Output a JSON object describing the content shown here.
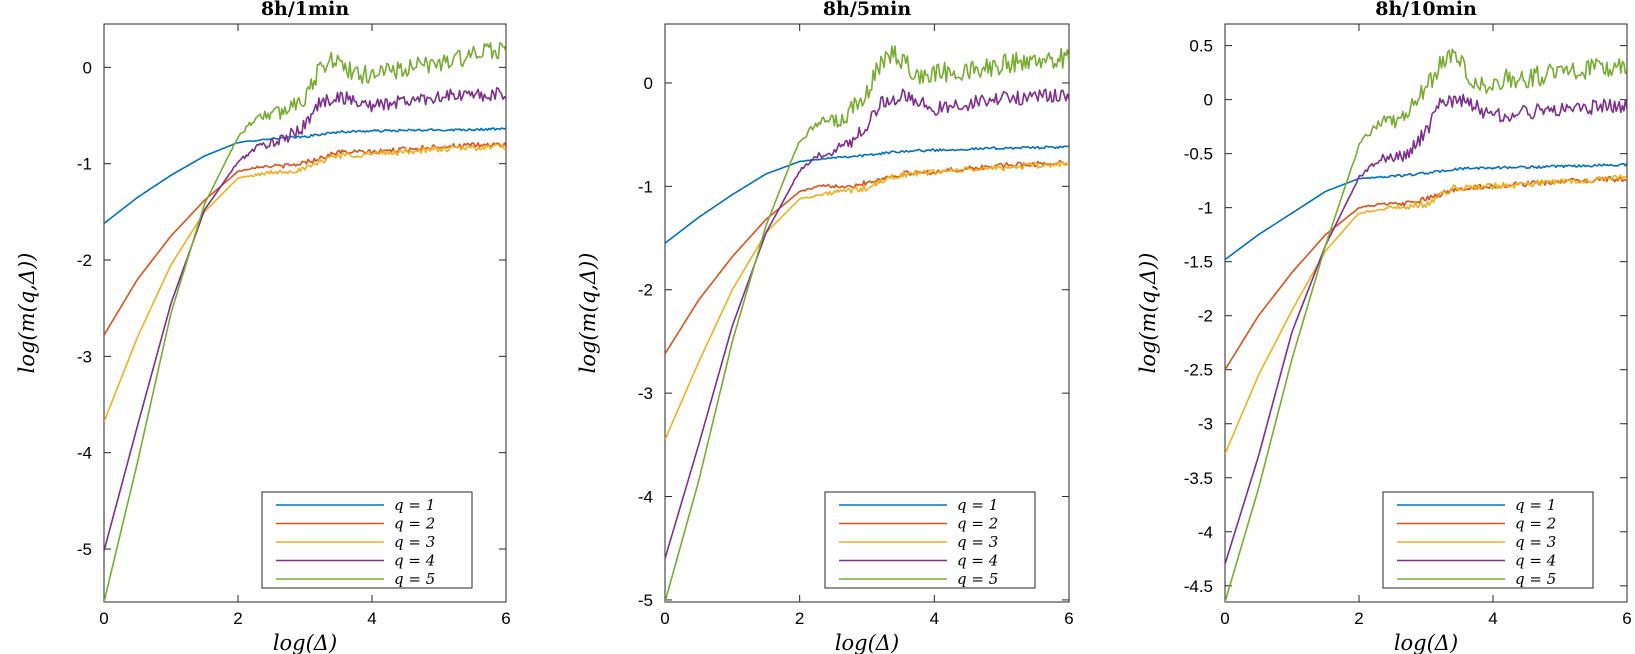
{
  "chart_data": [
    {
      "type": "line",
      "title": "8h/1min",
      "xlabel": "log(Δ)",
      "ylabel": "log(m(q,Δ))",
      "xlim": [
        0,
        6
      ],
      "ylim": [
        -5.55,
        0.45
      ],
      "xticks": [
        0,
        2,
        4,
        6
      ],
      "xtick_labels": [
        "0",
        "2",
        "4",
        "6"
      ],
      "yticks": [
        -5,
        -4,
        -3,
        -2,
        -1,
        0
      ],
      "ytick_labels": [
        "-5",
        "-4",
        "-3",
        "-2",
        "-1",
        "0"
      ],
      "legend_position": "bottom-right",
      "series": [
        {
          "name": "q = 1",
          "color": "#0072BD",
          "noise": 0.012,
          "points": [
            [
              0,
              -1.62
            ],
            [
              0.5,
              -1.35
            ],
            [
              1,
              -1.12
            ],
            [
              1.5,
              -0.92
            ],
            [
              2,
              -0.78
            ],
            [
              2.5,
              -0.74
            ],
            [
              3,
              -0.72
            ],
            [
              3.5,
              -0.67
            ],
            [
              4,
              -0.66
            ],
            [
              5,
              -0.65
            ],
            [
              6,
              -0.64
            ]
          ]
        },
        {
          "name": "q = 2",
          "color": "#D95319",
          "noise": 0.025,
          "points": [
            [
              0,
              -2.78
            ],
            [
              0.5,
              -2.2
            ],
            [
              1,
              -1.75
            ],
            [
              1.5,
              -1.38
            ],
            [
              2,
              -1.08
            ],
            [
              2.3,
              -1.03
            ],
            [
              2.8,
              -1.02
            ],
            [
              3.2,
              -0.95
            ],
            [
              3.5,
              -0.88
            ],
            [
              4,
              -0.88
            ],
            [
              5,
              -0.82
            ],
            [
              6,
              -0.8
            ]
          ]
        },
        {
          "name": "q = 3",
          "color": "#EDB120",
          "noise": 0.03,
          "points": [
            [
              0,
              -3.68
            ],
            [
              0.5,
              -2.8
            ],
            [
              1,
              -2.05
            ],
            [
              1.5,
              -1.5
            ],
            [
              2,
              -1.15
            ],
            [
              2.5,
              -1.09
            ],
            [
              3,
              -1.06
            ],
            [
              3.4,
              -0.92
            ],
            [
              4,
              -0.9
            ],
            [
              5,
              -0.85
            ],
            [
              6,
              -0.82
            ]
          ]
        },
        {
          "name": "q = 4",
          "color": "#7E2F8E",
          "noise": 0.07,
          "points": [
            [
              0,
              -5.02
            ],
            [
              0.5,
              -3.72
            ],
            [
              1,
              -2.45
            ],
            [
              1.5,
              -1.48
            ],
            [
              2,
              -0.98
            ],
            [
              2.3,
              -0.82
            ],
            [
              2.7,
              -0.75
            ],
            [
              3,
              -0.6
            ],
            [
              3.2,
              -0.38
            ],
            [
              3.5,
              -0.3
            ],
            [
              4,
              -0.4
            ],
            [
              4.5,
              -0.35
            ],
            [
              5,
              -0.3
            ],
            [
              6,
              -0.28
            ]
          ]
        },
        {
          "name": "q = 5",
          "color": "#77AC30",
          "noise": 0.1,
          "points": [
            [
              0,
              -5.55
            ],
            [
              0.5,
              -4.1
            ],
            [
              1,
              -2.55
            ],
            [
              1.5,
              -1.42
            ],
            [
              2,
              -0.72
            ],
            [
              2.3,
              -0.5
            ],
            [
              2.6,
              -0.48
            ],
            [
              3,
              -0.3
            ],
            [
              3.2,
              -0.05
            ],
            [
              3.4,
              0.1
            ],
            [
              3.8,
              -0.1
            ],
            [
              4,
              -0.05
            ],
            [
              4.5,
              -0.02
            ],
            [
              5,
              0.05
            ],
            [
              5.5,
              0.12
            ],
            [
              6,
              0.2
            ]
          ]
        }
      ]
    },
    {
      "type": "line",
      "title": "8h/5min",
      "xlabel": "log(Δ)",
      "ylabel": "log(m(q,Δ))",
      "xlim": [
        0,
        6
      ],
      "ylim": [
        -5.02,
        0.57
      ],
      "xticks": [
        0,
        2,
        4,
        6
      ],
      "xtick_labels": [
        "0",
        "2",
        "4",
        "6"
      ],
      "yticks": [
        -5,
        -4,
        -3,
        -2,
        -1,
        0
      ],
      "ytick_labels": [
        "-5",
        "-4",
        "-3",
        "-2",
        "-1",
        "0"
      ],
      "legend_position": "bottom-right",
      "series": [
        {
          "name": "q = 1",
          "color": "#0072BD",
          "noise": 0.012,
          "points": [
            [
              0,
              -1.55
            ],
            [
              0.5,
              -1.3
            ],
            [
              1,
              -1.08
            ],
            [
              1.5,
              -0.88
            ],
            [
              2,
              -0.76
            ],
            [
              2.5,
              -0.72
            ],
            [
              3,
              -0.7
            ],
            [
              3.5,
              -0.66
            ],
            [
              4,
              -0.65
            ],
            [
              5,
              -0.63
            ],
            [
              6,
              -0.62
            ]
          ]
        },
        {
          "name": "q = 2",
          "color": "#D95319",
          "noise": 0.025,
          "points": [
            [
              0,
              -2.62
            ],
            [
              0.5,
              -2.1
            ],
            [
              1,
              -1.68
            ],
            [
              1.5,
              -1.32
            ],
            [
              2,
              -1.05
            ],
            [
              2.3,
              -1.0
            ],
            [
              2.8,
              -0.99
            ],
            [
              3.2,
              -0.93
            ],
            [
              3.5,
              -0.88
            ],
            [
              4,
              -0.86
            ],
            [
              5,
              -0.8
            ],
            [
              6,
              -0.77
            ]
          ]
        },
        {
          "name": "q = 3",
          "color": "#EDB120",
          "noise": 0.03,
          "points": [
            [
              0,
              -3.45
            ],
            [
              0.5,
              -2.7
            ],
            [
              1,
              -2.0
            ],
            [
              1.5,
              -1.45
            ],
            [
              2,
              -1.12
            ],
            [
              2.5,
              -1.06
            ],
            [
              3,
              -1.02
            ],
            [
              3.4,
              -0.9
            ],
            [
              4,
              -0.86
            ],
            [
              5,
              -0.82
            ],
            [
              6,
              -0.78
            ]
          ]
        },
        {
          "name": "q = 4",
          "color": "#7E2F8E",
          "noise": 0.07,
          "points": [
            [
              0,
              -4.6
            ],
            [
              0.5,
              -3.5
            ],
            [
              1,
              -2.35
            ],
            [
              1.5,
              -1.45
            ],
            [
              2,
              -0.85
            ],
            [
              2.3,
              -0.7
            ],
            [
              2.7,
              -0.6
            ],
            [
              3,
              -0.4
            ],
            [
              3.2,
              -0.2
            ],
            [
              3.5,
              -0.12
            ],
            [
              4,
              -0.25
            ],
            [
              4.5,
              -0.2
            ],
            [
              5,
              -0.15
            ],
            [
              6,
              -0.12
            ]
          ]
        },
        {
          "name": "q = 5",
          "color": "#77AC30",
          "noise": 0.1,
          "points": [
            [
              0,
              -5.02
            ],
            [
              0.5,
              -3.85
            ],
            [
              1,
              -2.5
            ],
            [
              1.5,
              -1.38
            ],
            [
              2,
              -0.55
            ],
            [
              2.3,
              -0.38
            ],
            [
              2.6,
              -0.38
            ],
            [
              3,
              -0.1
            ],
            [
              3.2,
              0.18
            ],
            [
              3.4,
              0.3
            ],
            [
              3.8,
              0.05
            ],
            [
              4,
              0.1
            ],
            [
              4.5,
              0.12
            ],
            [
              5,
              0.18
            ],
            [
              5.5,
              0.22
            ],
            [
              6,
              0.25
            ]
          ]
        }
      ]
    },
    {
      "type": "line",
      "title": "8h/10min",
      "xlabel": "log(Δ)",
      "ylabel": "log(m(q,Δ))",
      "xlim": [
        0,
        6
      ],
      "ylim": [
        -4.65,
        0.7
      ],
      "xticks": [
        0,
        2,
        4,
        6
      ],
      "xtick_labels": [
        "0",
        "2",
        "4",
        "6"
      ],
      "yticks": [
        -4.5,
        -4,
        -3.5,
        -3,
        -2.5,
        -2,
        -1.5,
        -1,
        -0.5,
        0,
        0.5
      ],
      "ytick_labels": [
        "-4.5",
        "-4",
        "-3.5",
        "-3",
        "-2.5",
        "-2",
        "-1.5",
        "-1",
        "-0.5",
        "0",
        "0.5"
      ],
      "legend_position": "bottom-right",
      "series": [
        {
          "name": "q = 1",
          "color": "#0072BD",
          "noise": 0.012,
          "points": [
            [
              0,
              -1.48
            ],
            [
              0.5,
              -1.25
            ],
            [
              1,
              -1.05
            ],
            [
              1.5,
              -0.85
            ],
            [
              2,
              -0.73
            ],
            [
              2.5,
              -0.71
            ],
            [
              3,
              -0.68
            ],
            [
              3.5,
              -0.64
            ],
            [
              4,
              -0.63
            ],
            [
              5,
              -0.62
            ],
            [
              6,
              -0.6
            ]
          ]
        },
        {
          "name": "q = 2",
          "color": "#D95319",
          "noise": 0.025,
          "points": [
            [
              0,
              -2.5
            ],
            [
              0.5,
              -2.0
            ],
            [
              1,
              -1.6
            ],
            [
              1.5,
              -1.25
            ],
            [
              2,
              -1.0
            ],
            [
              2.3,
              -0.97
            ],
            [
              2.8,
              -0.96
            ],
            [
              3.2,
              -0.88
            ],
            [
              3.5,
              -0.82
            ],
            [
              4,
              -0.8
            ],
            [
              5,
              -0.76
            ],
            [
              6,
              -0.73
            ]
          ]
        },
        {
          "name": "q = 3",
          "color": "#EDB120",
          "noise": 0.03,
          "points": [
            [
              0,
              -3.28
            ],
            [
              0.5,
              -2.55
            ],
            [
              1,
              -1.95
            ],
            [
              1.5,
              -1.4
            ],
            [
              2,
              -1.05
            ],
            [
              2.5,
              -1.0
            ],
            [
              3,
              -0.97
            ],
            [
              3.4,
              -0.82
            ],
            [
              4,
              -0.8
            ],
            [
              5,
              -0.76
            ],
            [
              6,
              -0.72
            ]
          ]
        },
        {
          "name": "q = 4",
          "color": "#7E2F8E",
          "noise": 0.07,
          "points": [
            [
              0,
              -4.3
            ],
            [
              0.5,
              -3.3
            ],
            [
              1,
              -2.15
            ],
            [
              1.5,
              -1.35
            ],
            [
              2,
              -0.72
            ],
            [
              2.3,
              -0.55
            ],
            [
              2.7,
              -0.52
            ],
            [
              3,
              -0.3
            ],
            [
              3.2,
              -0.05
            ],
            [
              3.5,
              0.0
            ],
            [
              4,
              -0.15
            ],
            [
              4.5,
              -0.12
            ],
            [
              5,
              -0.08
            ],
            [
              6,
              -0.05
            ]
          ]
        },
        {
          "name": "q = 5",
          "color": "#77AC30",
          "noise": 0.1,
          "points": [
            [
              0,
              -4.65
            ],
            [
              0.5,
              -3.6
            ],
            [
              1,
              -2.4
            ],
            [
              1.5,
              -1.35
            ],
            [
              2,
              -0.42
            ],
            [
              2.3,
              -0.2
            ],
            [
              2.6,
              -0.2
            ],
            [
              3,
              0.08
            ],
            [
              3.2,
              0.32
            ],
            [
              3.4,
              0.42
            ],
            [
              3.8,
              0.12
            ],
            [
              4,
              0.18
            ],
            [
              4.5,
              0.2
            ],
            [
              5,
              0.25
            ],
            [
              5.5,
              0.28
            ],
            [
              6,
              0.32
            ]
          ]
        }
      ]
    }
  ]
}
